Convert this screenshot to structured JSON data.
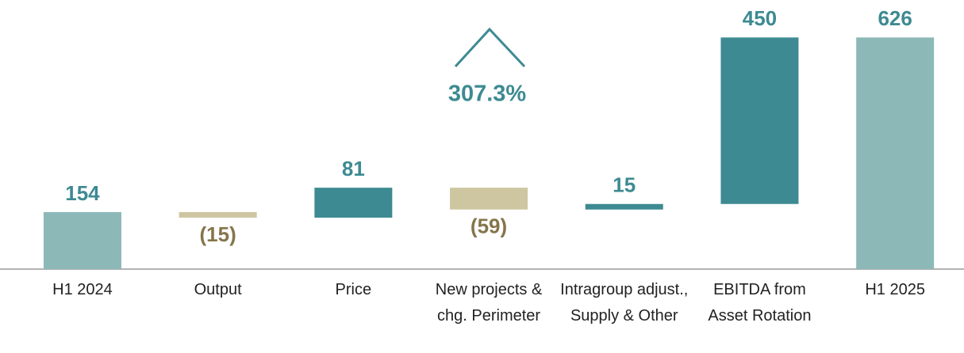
{
  "chart_data": {
    "type": "waterfall",
    "categories": [
      "H1 2024",
      "Output",
      "Price",
      "New projects & chg. Perimeter",
      "Intragroup adjust., Supply & Other",
      "EBITDA from Asset Rotation",
      "H1 2025"
    ],
    "values": [
      154,
      -15,
      81,
      -59,
      15,
      450,
      626
    ],
    "value_labels": [
      "154",
      "(15)",
      "81",
      "(59)",
      "15",
      "450",
      "626"
    ],
    "totals": [
      true,
      false,
      false,
      false,
      false,
      false,
      true
    ],
    "colors": {
      "total": "#8cb8b8",
      "increase": "#3d8a92",
      "decrease": "#cdc6a0"
    },
    "label_colors": {
      "positive": "#3d8a92",
      "negative": "#85754a"
    },
    "annotation": "307.3%",
    "ylim": [
      0,
      700
    ]
  }
}
